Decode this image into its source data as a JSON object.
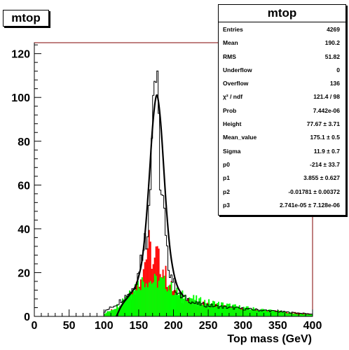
{
  "title_box": "mtop",
  "chart_data": {
    "type": "histogram",
    "title": "mtop",
    "xlabel": "Top mass (GeV)",
    "ylabel": "",
    "xlim": [
      0,
      400
    ],
    "ylim": [
      0,
      125
    ],
    "x_ticks": [
      0,
      50,
      100,
      150,
      200,
      250,
      300,
      350,
      400
    ],
    "y_ticks": [
      0,
      20,
      40,
      60,
      80,
      100,
      120
    ],
    "bin_width": 2,
    "grid": false,
    "colors": {
      "red_fill": "#ff0000",
      "green_fill": "#00ff00",
      "outline": "#000000",
      "frame": "#800000"
    },
    "series": [
      {
        "kind": "outline",
        "bins": [
          [
            100,
            2
          ],
          [
            110,
            4
          ],
          [
            120,
            6
          ],
          [
            130,
            9
          ],
          [
            140,
            12
          ],
          [
            148,
            17
          ],
          [
            152,
            25
          ],
          [
            156,
            30
          ],
          [
            158,
            42
          ],
          [
            160,
            28
          ],
          [
            162,
            35
          ],
          [
            164,
            50
          ],
          [
            166,
            60
          ],
          [
            168,
            75
          ],
          [
            170,
            95
          ],
          [
            172,
            108
          ],
          [
            174,
            118
          ],
          [
            176,
            100
          ],
          [
            178,
            95
          ],
          [
            180,
            72
          ],
          [
            182,
            60
          ],
          [
            184,
            50
          ],
          [
            186,
            52
          ],
          [
            188,
            38
          ],
          [
            190,
            30
          ],
          [
            194,
            22
          ],
          [
            198,
            18
          ],
          [
            204,
            12
          ],
          [
            210,
            9
          ],
          [
            220,
            8
          ],
          [
            230,
            6
          ],
          [
            250,
            5
          ],
          [
            280,
            4
          ],
          [
            320,
            3
          ],
          [
            360,
            2
          ],
          [
            400,
            1
          ]
        ]
      },
      {
        "kind": "red_fill",
        "bins": [
          [
            100,
            1
          ],
          [
            130,
            6
          ],
          [
            140,
            10
          ],
          [
            150,
            16
          ],
          [
            160,
            26
          ],
          [
            164,
            34
          ],
          [
            168,
            28
          ],
          [
            172,
            22
          ],
          [
            176,
            30
          ],
          [
            180,
            24
          ],
          [
            184,
            22
          ],
          [
            188,
            20
          ],
          [
            192,
            16
          ],
          [
            200,
            12
          ],
          [
            210,
            8
          ],
          [
            230,
            6
          ],
          [
            260,
            5
          ],
          [
            300,
            3
          ],
          [
            360,
            2
          ],
          [
            400,
            1
          ]
        ]
      },
      {
        "kind": "green_fill",
        "bins": [
          [
            100,
            1
          ],
          [
            120,
            5
          ],
          [
            130,
            9
          ],
          [
            140,
            13
          ],
          [
            150,
            15
          ],
          [
            160,
            17
          ],
          [
            170,
            16
          ],
          [
            180,
            16
          ],
          [
            190,
            15
          ],
          [
            200,
            12
          ],
          [
            210,
            10
          ],
          [
            220,
            9
          ],
          [
            240,
            7
          ],
          [
            260,
            6
          ],
          [
            280,
            5
          ],
          [
            300,
            4
          ],
          [
            330,
            3
          ],
          [
            360,
            2
          ],
          [
            380,
            1
          ],
          [
            400,
            1
          ]
        ]
      },
      {
        "kind": "fit",
        "function": "gaus+pol3",
        "points": [
          [
            118,
            0
          ],
          [
            125,
            5
          ],
          [
            135,
            9
          ],
          [
            145,
            13
          ],
          [
            150,
            18
          ],
          [
            155,
            25
          ],
          [
            160,
            40
          ],
          [
            165,
            62
          ],
          [
            170,
            88
          ],
          [
            175,
            102
          ],
          [
            178,
            100
          ],
          [
            182,
            88
          ],
          [
            186,
            68
          ],
          [
            190,
            48
          ],
          [
            195,
            30
          ],
          [
            200,
            20
          ],
          [
            205,
            14
          ],
          [
            210,
            11
          ],
          [
            215,
            9
          ]
        ]
      }
    ]
  },
  "stats": {
    "title": "mtop",
    "rows": [
      {
        "key": "Entries",
        "value": "4269"
      },
      {
        "key": "Mean",
        "value": "190.2"
      },
      {
        "key": "RMS",
        "value": "51.82"
      },
      {
        "key": "Underflow",
        "value": "0"
      },
      {
        "key": "Overflow",
        "value": "136"
      },
      {
        "key": "χ² / ndf",
        "value": "121.4 / 98"
      },
      {
        "key": "Prob",
        "value": "7.442e-06"
      },
      {
        "key": "Height",
        "value": "77.67 ± 3.71"
      },
      {
        "key": "Mean_value",
        "value": "175.1 ± 0.5"
      },
      {
        "key": "Sigma",
        "value": "11.9 ± 0.7"
      },
      {
        "key": "p0",
        "value": "-214 ± 33.7"
      },
      {
        "key": "p1",
        "value": "3.855 ± 0.627"
      },
      {
        "key": "p2",
        "value": "-0.01781 ± 0.00372"
      },
      {
        "key": "p3",
        "value": "2.741e-05 ± 7.128e-06"
      }
    ]
  }
}
